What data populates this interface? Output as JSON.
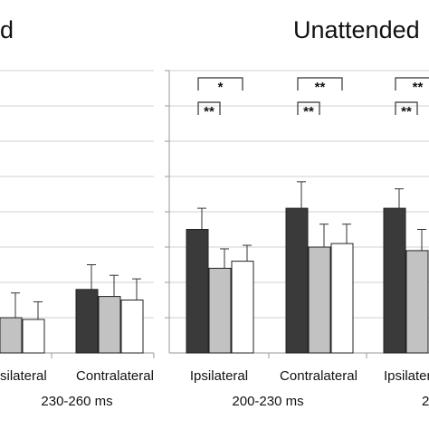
{
  "chart_data": [
    {
      "type": "bar",
      "title": "d",
      "xlabel": "230-260 ms",
      "categories": [
        "Ipsilateral",
        "Contralateral"
      ],
      "category_labels": [
        "silateral",
        "Contralateral"
      ],
      "ylim": [
        0,
        8
      ],
      "grid": true,
      "series": [
        {
          "color": "#3a3a3a",
          "values": [
            null,
            1.8
          ],
          "errors": [
            null,
            0.7
          ]
        },
        {
          "color": "#c2c2c2",
          "values": [
            1.0,
            1.6
          ],
          "errors": [
            0.7,
            0.6
          ]
        },
        {
          "color": "#ffffff",
          "values": [
            0.95,
            1.5
          ],
          "errors": [
            0.5,
            0.6
          ]
        }
      ]
    },
    {
      "type": "bar",
      "title": "Unattended",
      "xlabel": "200-230 ms",
      "categories": [
        "Ipsilateral",
        "Contralateral",
        "Ipsilateral"
      ],
      "ylim": [
        0,
        8
      ],
      "grid": true,
      "series": [
        {
          "color": "#3a3a3a",
          "values": [
            3.5,
            4.1,
            4.1
          ],
          "errors": [
            0.6,
            0.75,
            0.55
          ]
        },
        {
          "color": "#c2c2c2",
          "values": [
            2.4,
            3.0,
            2.9
          ],
          "errors": [
            0.55,
            0.65,
            0.6
          ]
        },
        {
          "color": "#ffffff",
          "values": [
            2.6,
            3.1,
            null
          ],
          "errors": [
            0.45,
            0.55,
            null
          ]
        }
      ],
      "annotations": [
        {
          "category": 0,
          "text": "*"
        },
        {
          "category": 0,
          "text": "**"
        },
        {
          "category": 1,
          "text": "**"
        },
        {
          "category": 1,
          "text": "**"
        },
        {
          "category": 2,
          "text": "**"
        },
        {
          "category": 2,
          "text": "**"
        }
      ]
    }
  ],
  "edge_fragment": "2"
}
